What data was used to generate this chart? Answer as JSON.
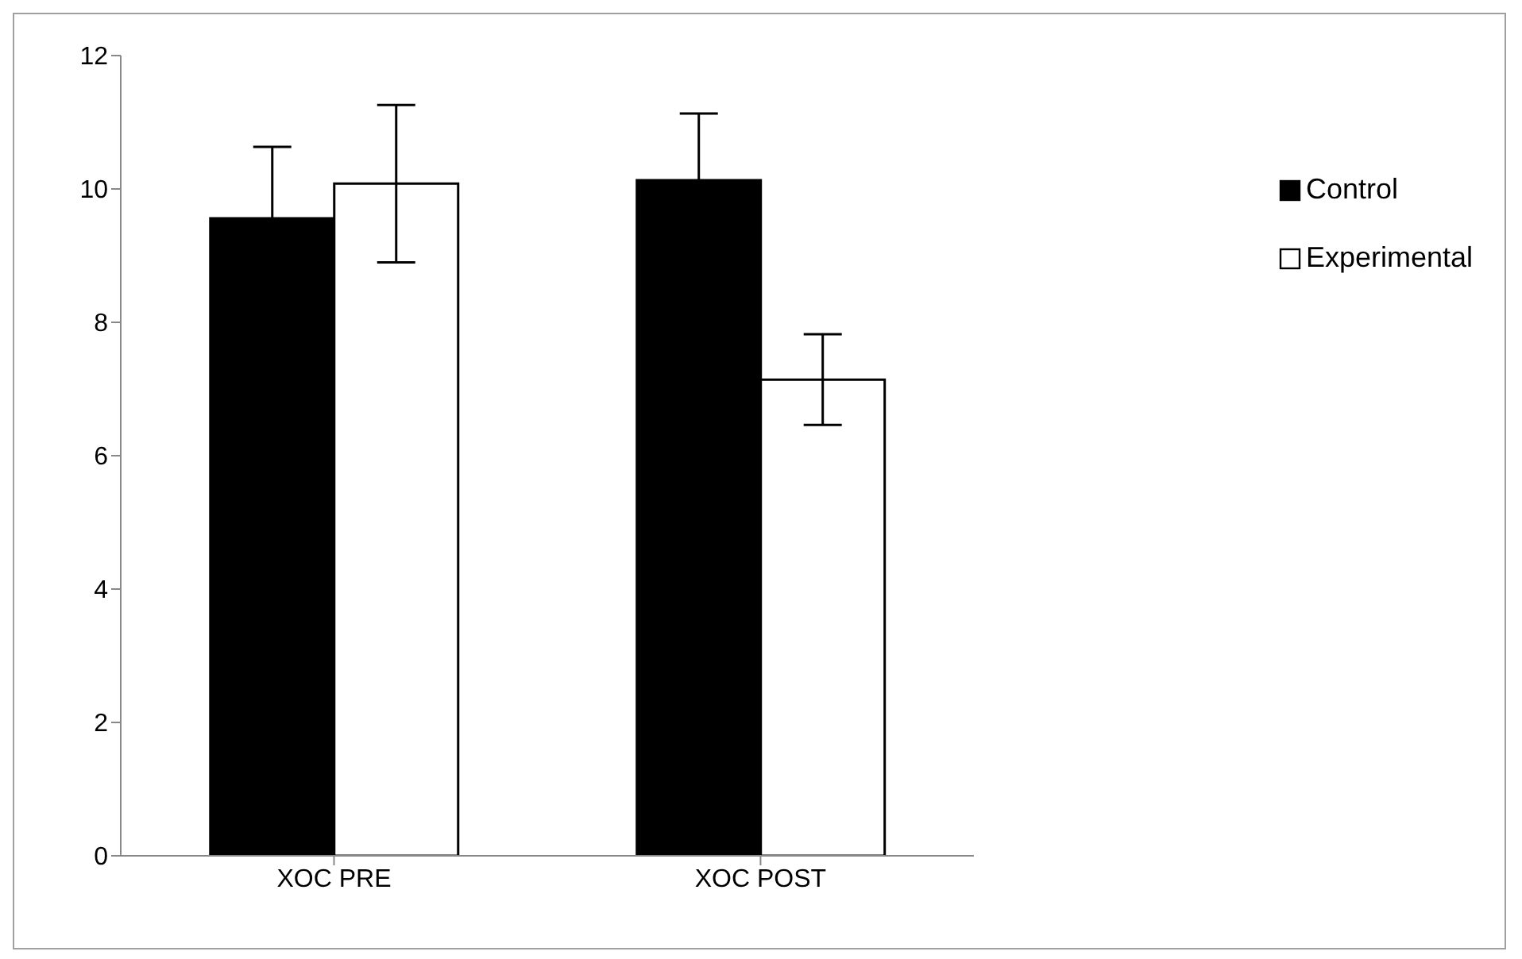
{
  "chart_data": {
    "type": "bar",
    "categories": [
      "XOC PRE",
      "XOC POST"
    ],
    "series": [
      {
        "name": "Control",
        "color": "#000000",
        "values": [
          9.56,
          10.13
        ],
        "errors": [
          1.07,
          1.0
        ]
      },
      {
        "name": "Experimental",
        "color": "#ffffff",
        "values": [
          10.08,
          7.14
        ],
        "errors": [
          1.18,
          0.68
        ]
      }
    ],
    "ylim": [
      0,
      12
    ],
    "yticks": [
      0,
      2,
      4,
      6,
      8,
      10,
      12
    ],
    "grid": false,
    "legend": "right"
  }
}
